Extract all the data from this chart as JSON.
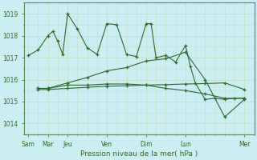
{
  "xlabel": "Pression niveau de la mer( hPa )",
  "bg_color": "#cbeef3",
  "grid_color_major": "#dde8cc",
  "grid_color_minor": "#dde8cc",
  "plot_bg": "#cbeef3",
  "line_color": "#2d6a2d",
  "tick_label_color": "#2d6a2d",
  "ylim": [
    1013.5,
    1019.5
  ],
  "yticks": [
    1014,
    1015,
    1016,
    1017,
    1018,
    1019
  ],
  "day_positions": [
    0,
    1,
    2,
    4,
    6,
    8,
    11
  ],
  "day_labels": [
    "Sam",
    "Mar",
    "Jeu",
    "Ven",
    "Dim",
    "Lun",
    "Mer"
  ],
  "series": {
    "volatile": {
      "x": [
        0,
        0.5,
        1,
        1.25,
        1.5,
        1.75,
        2,
        2.5,
        3,
        3.5,
        4,
        4.5,
        5,
        5.5,
        6,
        6.25,
        6.5,
        7,
        7.5,
        8,
        8.25,
        8.5,
        9,
        9.5,
        10,
        10.5,
        11
      ],
      "y": [
        1017.1,
        1017.35,
        1018.0,
        1018.2,
        1017.75,
        1017.15,
        1019.0,
        1018.3,
        1017.45,
        1017.15,
        1018.55,
        1018.5,
        1017.15,
        1017.05,
        1018.55,
        1018.55,
        1017.0,
        1017.1,
        1016.8,
        1017.55,
        1016.6,
        1015.85,
        1015.1,
        1015.15,
        1015.1,
        1015.15,
        1015.15
      ]
    },
    "rising": {
      "x": [
        0.5,
        1,
        2,
        3,
        4,
        5,
        6,
        7,
        8,
        9,
        10,
        11
      ],
      "y": [
        1015.6,
        1015.6,
        1015.85,
        1016.1,
        1016.4,
        1016.55,
        1016.85,
        1016.95,
        1017.25,
        1016.0,
        1014.3,
        1015.1
      ]
    },
    "flat_low1": {
      "x": [
        0.5,
        1,
        2,
        3,
        4,
        5,
        6,
        7,
        8,
        9,
        10,
        11
      ],
      "y": [
        1015.6,
        1015.6,
        1015.75,
        1015.75,
        1015.8,
        1015.8,
        1015.75,
        1015.6,
        1015.5,
        1015.35,
        1015.15,
        1015.15
      ]
    },
    "flat_low2": {
      "x": [
        0.5,
        1,
        2,
        3,
        4,
        5,
        6,
        7,
        8,
        9,
        10,
        11
      ],
      "y": [
        1015.55,
        1015.55,
        1015.6,
        1015.65,
        1015.7,
        1015.72,
        1015.75,
        1015.77,
        1015.8,
        1015.82,
        1015.85,
        1015.55
      ]
    }
  }
}
